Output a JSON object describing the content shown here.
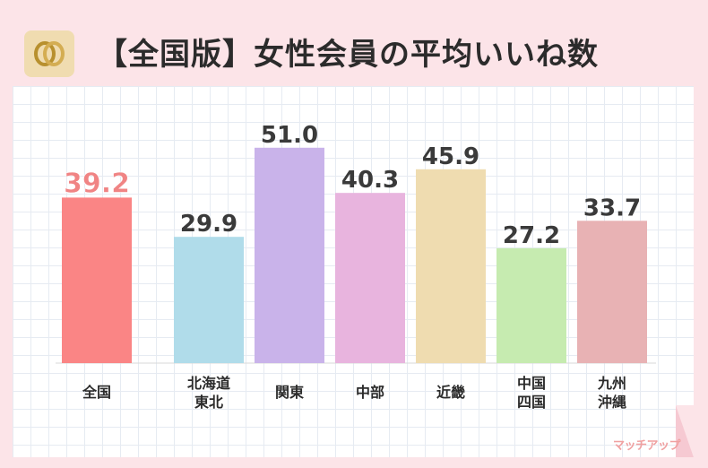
{
  "header": {
    "title": "【全国版】女性会員の平均いいね数",
    "logo_icon": "interlocked-rings-icon"
  },
  "brand": {
    "label": "マッチアップ"
  },
  "colors": {
    "background": "#fce4e8",
    "title": "#2b2b2b",
    "label_default": "#3a3a3a",
    "label_highlight": "#f08484"
  },
  "chart_data": {
    "type": "bar",
    "title": "【全国版】女性会員の平均いいね数",
    "xlabel": "",
    "ylabel": "",
    "ylim": [
      0,
      60
    ],
    "grid": true,
    "categories": [
      [
        "全国"
      ],
      [
        "北海道",
        "東北"
      ],
      [
        "関東"
      ],
      [
        "中部"
      ],
      [
        "近畿"
      ],
      [
        "中国",
        "四国"
      ],
      [
        "九州",
        "沖縄"
      ]
    ],
    "values": [
      39.2,
      29.9,
      51.0,
      40.3,
      45.9,
      27.2,
      33.7
    ],
    "value_labels": [
      "39.2",
      "29.9",
      "51.0",
      "40.3",
      "45.9",
      "27.2",
      "33.7"
    ],
    "bar_colors": [
      "#fa8585",
      "#b0dcea",
      "#c9b3ea",
      "#e8b4de",
      "#efdcb0",
      "#c6ebb0",
      "#e8b2b4"
    ],
    "highlight_index": 0
  }
}
